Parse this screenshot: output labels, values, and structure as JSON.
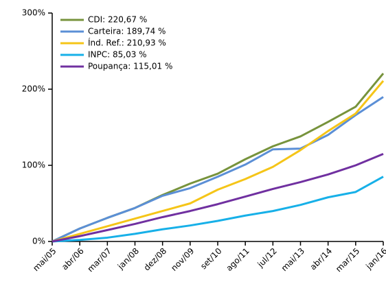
{
  "chart_data": {
    "type": "line",
    "categories": [
      "mai/05",
      "abr/06",
      "mar/07",
      "jan/08",
      "dez/08",
      "nov/09",
      "set/10",
      "ago/11",
      "jul/12",
      "mai/13",
      "abr/14",
      "mar/15",
      "jan/16"
    ],
    "series": [
      {
        "name": "CDI: 220,67 %",
        "color": "#77933c",
        "values": [
          0,
          17,
          31,
          44,
          61,
          76,
          89,
          108,
          125,
          138,
          157,
          177,
          220.67
        ]
      },
      {
        "name": "Carteira: 189,74 %",
        "color": "#5b8fd6",
        "values": [
          0,
          17,
          31,
          44,
          60,
          70,
          85,
          101,
          121,
          122,
          140,
          166,
          189.74
        ]
      },
      {
        "name": "Índ. Ref.: 210,93 %",
        "color": "#f5c518",
        "values": [
          0,
          10,
          20,
          30,
          40,
          50,
          68,
          82,
          98,
          120,
          145,
          168,
          210.93
        ]
      },
      {
        "name": "INPC: 85,03 %",
        "color": "#17b0e8",
        "values": [
          0,
          2,
          5,
          10,
          16,
          21,
          27,
          34,
          40,
          48,
          58,
          65,
          85.03
        ]
      },
      {
        "name": "Poupança: 115,01 %",
        "color": "#7030a0",
        "values": [
          0,
          7,
          15,
          23,
          32,
          40,
          49,
          59,
          69,
          78,
          88,
          100,
          115.01
        ]
      }
    ],
    "ylim": [
      0,
      300
    ],
    "yticks": [
      {
        "value": 0,
        "label": "0%"
      },
      {
        "value": 100,
        "label": "100%"
      },
      {
        "value": 200,
        "label": "200%"
      },
      {
        "value": 300,
        "label": "300%"
      }
    ],
    "grid": false,
    "legend": "upper-left"
  }
}
